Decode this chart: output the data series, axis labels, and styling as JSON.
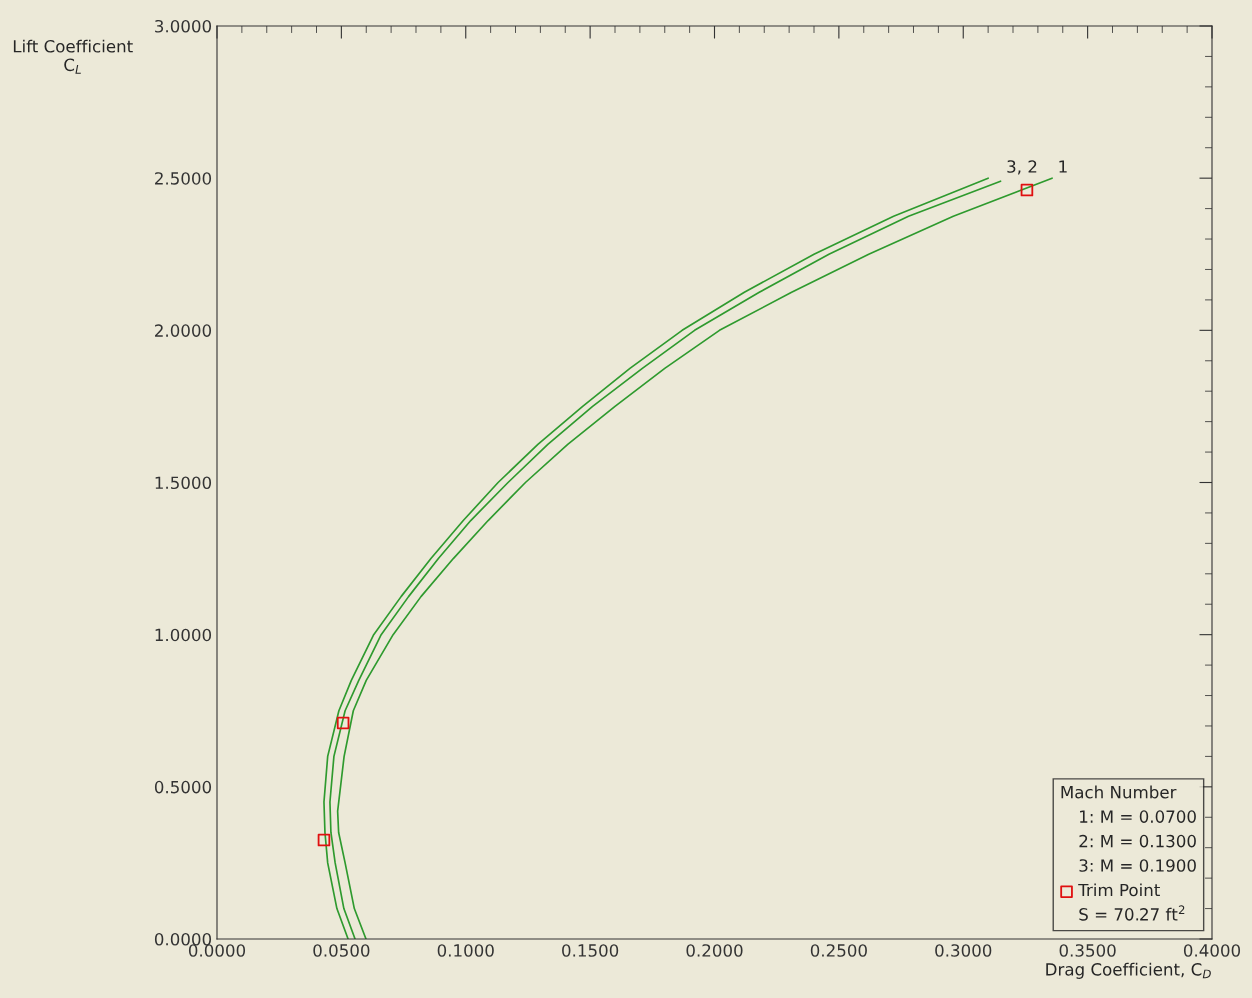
{
  "chart_data": {
    "type": "line",
    "xlabel": "Drag Coefficient, C$_{D}$",
    "ylabel": "Lift Coefficient\nC$_{L}$",
    "legend_title": "Mach Number",
    "legend": "bottom right",
    "grid": false,
    "marker": "none",
    "line_style": "solid",
    "xlim": [
      0,
      0.4
    ],
    "ylim": [
      0,
      3
    ],
    "xticks": [
      {
        "value": 0,
        "label": "0.0000"
      },
      {
        "value": 0.05,
        "label": "0.0500"
      },
      {
        "value": 0.1,
        "label": "0.1000"
      },
      {
        "value": 0.15,
        "label": "0.1500"
      },
      {
        "value": 0.2,
        "label": "0.2000"
      },
      {
        "value": 0.25,
        "label": "0.2500"
      },
      {
        "value": 0.3,
        "label": "0.3000"
      },
      {
        "value": 0.35,
        "label": "0.3500"
      },
      {
        "value": 0.4,
        "label": "0.4000"
      }
    ],
    "yticks": [
      {
        "value": 0,
        "label": "0.0000"
      },
      {
        "value": 0.5,
        "label": "0.5000"
      },
      {
        "value": 1,
        "label": "1.0000"
      },
      {
        "value": 1.5,
        "label": "1.5000"
      },
      {
        "value": 2,
        "label": "2.0000"
      },
      {
        "value": 2.5,
        "label": "2.5000"
      },
      {
        "value": 3,
        "label": "3.0000"
      }
    ],
    "series": [
      {
        "color": "#2e9a2e",
        "x": [
          0.0599,
          0.0552,
          0.0515,
          0.0489,
          0.0485,
          0.0511,
          0.0548,
          0.06,
          0.0708,
          0.082,
          0.095,
          0.109,
          0.124,
          0.141,
          0.16,
          0.18,
          0.202,
          0.231,
          0.262,
          0.296,
          0.3357
        ],
        "values": [
          0,
          0.1,
          0.25,
          0.35,
          0.42,
          0.6,
          0.75,
          0.85,
          1.0,
          1.125,
          1.25,
          1.375,
          1.5,
          1.625,
          1.75,
          1.875,
          2.0,
          2.125,
          2.25,
          2.375,
          2.5
        ]
      },
      {
        "color": "#2e9a2e",
        "x": [
          0.0555,
          0.051,
          0.0475,
          0.0458,
          0.0454,
          0.047,
          0.0515,
          0.057,
          0.066,
          0.077,
          0.089,
          0.102,
          0.117,
          0.133,
          0.151,
          0.171,
          0.192,
          0.218,
          0.246,
          0.278,
          0.315
        ],
        "values": [
          0,
          0.1,
          0.25,
          0.35,
          0.45,
          0.6,
          0.75,
          0.85,
          1.0,
          1.125,
          1.25,
          1.375,
          1.5,
          1.625,
          1.75,
          1.875,
          2.0,
          2.125,
          2.25,
          2.375,
          2.49
        ]
      },
      {
        "color": "#2e9a2e",
        "x": [
          0.0527,
          0.0482,
          0.0445,
          0.0434,
          0.043,
          0.0445,
          0.049,
          0.054,
          0.063,
          0.074,
          0.086,
          0.099,
          0.113,
          0.129,
          0.147,
          0.166,
          0.187,
          0.212,
          0.24,
          0.272,
          0.31
        ],
        "values": [
          0,
          0.1,
          0.25,
          0.35,
          0.45,
          0.6,
          0.75,
          0.85,
          1.0,
          1.125,
          1.25,
          1.375,
          1.5,
          1.625,
          1.75,
          1.875,
          2.0,
          2.125,
          2.25,
          2.375,
          2.5
        ]
      },
      {
        "name": "Trim Point",
        "type": "scatter",
        "marker": "square",
        "color": "#e01010",
        "x": [
          0.043,
          0.0507,
          0.3256
        ],
        "values": [
          0.325,
          0.71,
          2.461
        ]
      }
    ],
    "annotations": [
      {
        "text": "3, 2",
        "x": 0.315,
        "y": 2.5
      },
      {
        "text": "1",
        "x": 0.3357,
        "y": 2.5
      },
      "1: M = 0.0700",
      "2: M = 0.1300",
      "3: M = 0.1900",
      "S = 70.27 ft$^{2}$"
    ]
  }
}
